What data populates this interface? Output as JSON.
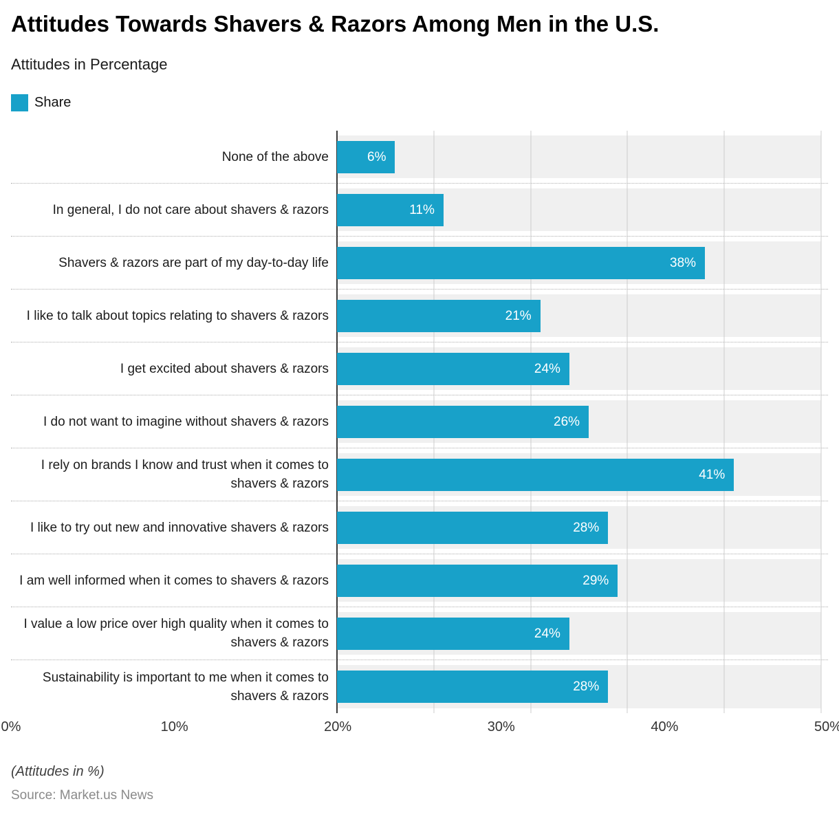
{
  "title": "Attitudes Towards Shavers & Razors Among Men in the U.S.",
  "subtitle": "Attitudes in Percentage",
  "legend": {
    "label": "Share",
    "color": "#18a1c9"
  },
  "footer": {
    "note": "(Attitudes in %)",
    "source": "Source: Market.us News"
  },
  "chart_data": {
    "type": "bar",
    "orientation": "horizontal",
    "title": "Attitudes Towards Shavers & Razors Among Men in the U.S.",
    "subtitle": "Attitudes in Percentage",
    "xlabel": "",
    "ylabel": "",
    "xlim": [
      0,
      50
    ],
    "x_ticks": [
      "0%",
      "10%",
      "20%",
      "30%",
      "40%",
      "50%"
    ],
    "grid": true,
    "legend_position": "top-left",
    "bar_color": "#18a1c9",
    "categories": [
      "None of the above",
      "In general, I do not care about shavers & razors",
      "Shavers & razors are part of my day-to-day life",
      "I like to talk about topics relating to shavers & razors",
      "I get excited about shavers & razors",
      "I do not want to imagine without shavers & razors",
      "I rely on brands I know and trust when it comes to shavers & razors",
      "I like to try out new and innovative shavers & razors",
      "I am well informed when it comes to shavers & razors",
      "I value a low price over high quality when it comes to shavers & razors",
      "Sustainability is important to me when it comes to shavers & razors"
    ],
    "values": [
      6,
      11,
      38,
      21,
      24,
      26,
      41,
      28,
      29,
      24,
      28
    ],
    "value_labels": [
      "6%",
      "11%",
      "38%",
      "21%",
      "24%",
      "26%",
      "41%",
      "28%",
      "29%",
      "24%",
      "28%"
    ]
  }
}
